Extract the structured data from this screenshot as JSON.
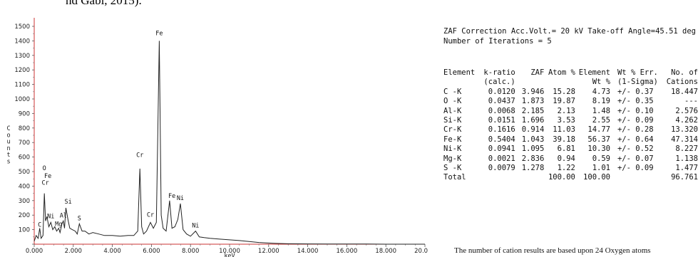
{
  "citation_fragment": "nd Gabi, 2015).",
  "chart_data": {
    "type": "line",
    "xlabel": "keV",
    "ylabel": "Counts",
    "xlim": [
      0,
      20
    ],
    "ylim": [
      0,
      1500
    ],
    "grid": false,
    "x_ticks": [
      "0.000",
      "2.000",
      "4.000",
      "6.000",
      "8.000",
      "10.000",
      "12.000",
      "14.000",
      "16.000",
      "18.000",
      "20.000"
    ],
    "y_ticks": [
      "0",
      "100",
      "200",
      "300",
      "400",
      "500",
      "600",
      "700",
      "800",
      "900",
      "1000",
      "1100",
      "1200",
      "1300",
      "1400",
      "1500"
    ],
    "series": [
      {
        "x": [
          0.0,
          0.1,
          0.2,
          0.28,
          0.35,
          0.45,
          0.52,
          0.58,
          0.65,
          0.75,
          0.85,
          0.95,
          1.05,
          1.15,
          1.25,
          1.32,
          1.42,
          1.49,
          1.55,
          1.62,
          1.74,
          1.82,
          1.95,
          2.1,
          2.2,
          2.31,
          2.45,
          2.6,
          2.8,
          3.0,
          3.3,
          3.6,
          4.0,
          4.4,
          4.8,
          5.1,
          5.3,
          5.41,
          5.5,
          5.6,
          5.75,
          5.95,
          6.1,
          6.25,
          6.4,
          6.5,
          6.6,
          6.75,
          6.93,
          7.05,
          7.2,
          7.35,
          7.48,
          7.62,
          7.8,
          8.0,
          8.26,
          8.45,
          8.7,
          9.0,
          9.5,
          10.0,
          10.5,
          11.0,
          11.5,
          12.0,
          12.5,
          13.0,
          14.0,
          15.0,
          16.0,
          17.0,
          18.0,
          19.0,
          20.0
        ],
        "y": [
          20,
          60,
          40,
          110,
          40,
          60,
          350,
          160,
          190,
          120,
          150,
          100,
          120,
          90,
          110,
          80,
          140,
          160,
          110,
          250,
          160,
          110,
          100,
          90,
          70,
          140,
          90,
          90,
          70,
          80,
          70,
          60,
          60,
          55,
          60,
          60,
          90,
          520,
          120,
          70,
          90,
          150,
          110,
          150,
          1400,
          200,
          110,
          90,
          300,
          110,
          120,
          170,
          280,
          100,
          70,
          55,
          90,
          50,
          45,
          40,
          35,
          30,
          25,
          18,
          12,
          8,
          5,
          3,
          2,
          1,
          1,
          1,
          0,
          0,
          0
        ]
      }
    ],
    "peak_labels": [
      {
        "label": "C",
        "x": 0.28,
        "y": 110
      },
      {
        "label": "O",
        "x": 0.52,
        "y": 500
      },
      {
        "label": "Fe",
        "x": 0.7,
        "y": 445
      },
      {
        "label": "Cr",
        "x": 0.57,
        "y": 400
      },
      {
        "label": "Ni",
        "x": 0.85,
        "y": 170
      },
      {
        "label": "Mg",
        "x": 1.25,
        "y": 115
      },
      {
        "label": "Al",
        "x": 1.49,
        "y": 175
      },
      {
        "label": "Si",
        "x": 1.74,
        "y": 270
      },
      {
        "label": "S",
        "x": 2.31,
        "y": 155
      },
      {
        "label": "Cr",
        "x": 5.41,
        "y": 590
      },
      {
        "label": "Cr",
        "x": 5.95,
        "y": 180
      },
      {
        "label": "Fe",
        "x": 6.4,
        "y": 1430
      },
      {
        "label": "Fe",
        "x": 7.05,
        "y": 310
      },
      {
        "label": "Ni",
        "x": 7.48,
        "y": 295
      },
      {
        "label": "Ni",
        "x": 8.26,
        "y": 105
      }
    ]
  },
  "zaf": {
    "line1": "ZAF Correction  Acc.Volt.= 20 kV  Take-off Angle=45.51 deg",
    "line2": "Number of Iterations = 5",
    "headers1": [
      "Element",
      "k-ratio",
      "ZAF",
      "Atom %",
      "Element",
      "Wt % Err.",
      "No. of"
    ],
    "headers2": [
      "",
      "(calc.)",
      "",
      "",
      "Wt %",
      "(1-Sigma)",
      "Cations"
    ],
    "rows": [
      [
        "C -K",
        "0.0120",
        "3.946",
        "15.28",
        "4.73",
        "+/- 0.37",
        "18.447"
      ],
      [
        "O -K",
        "0.0437",
        "1.873",
        "19.87",
        "8.19",
        "+/- 0.35",
        "---"
      ],
      [
        "Al-K",
        "0.0068",
        "2.185",
        "2.13",
        "1.48",
        "+/- 0.10",
        "2.576"
      ],
      [
        "Si-K",
        "0.0151",
        "1.696",
        "3.53",
        "2.55",
        "+/- 0.09",
        "4.262"
      ],
      [
        "Cr-K",
        "0.1616",
        "0.914",
        "11.03",
        "14.77",
        "+/- 0.28",
        "13.320"
      ],
      [
        "Fe-K",
        "0.5404",
        "1.043",
        "39.18",
        "56.37",
        "+/- 0.64",
        "47.314"
      ],
      [
        "Ni-K",
        "0.0941",
        "1.095",
        "6.81",
        "10.30",
        "+/- 0.52",
        "8.227"
      ],
      [
        "Mg-K",
        "0.0021",
        "2.836",
        "0.94",
        "0.59",
        "+/- 0.07",
        "1.138"
      ],
      [
        "S -K",
        "0.0079",
        "1.278",
        "1.22",
        "1.01",
        "+/- 0.09",
        "1.477"
      ]
    ],
    "total": [
      "Total",
      "",
      "",
      "100.00",
      "100.00",
      "",
      "96.761"
    ],
    "note": "The number of cation results are based upon 24 Oxygen atoms"
  }
}
